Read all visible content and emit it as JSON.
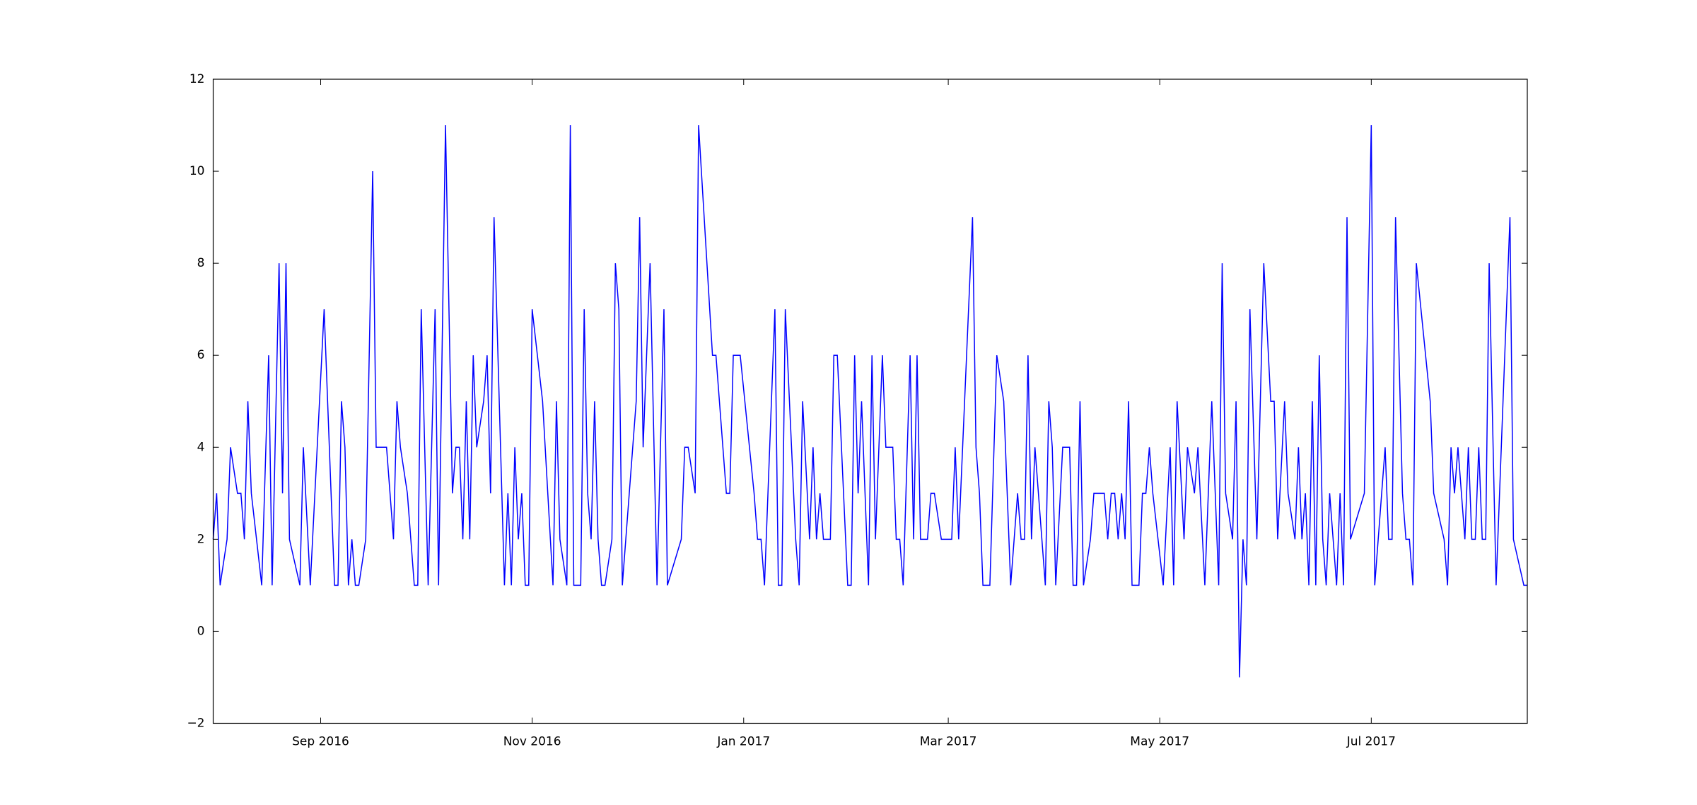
{
  "chart_data": {
    "type": "line",
    "color": "#0000ff",
    "xlim": [
      "2016-08-01",
      "2017-08-15"
    ],
    "xticks": [
      {
        "value": "2016-09-01",
        "label": "Sep 2016"
      },
      {
        "value": "2016-11-01",
        "label": "Nov 2016"
      },
      {
        "value": "2017-01-01",
        "label": "Jan 2017"
      },
      {
        "value": "2017-03-01",
        "label": "Mar 2017"
      },
      {
        "value": "2017-05-01",
        "label": "May 2017"
      },
      {
        "value": "2017-07-01",
        "label": "Jul 2017"
      }
    ],
    "ylim": [
      -2,
      12
    ],
    "yticks": [
      {
        "value": -2,
        "label": "−2"
      },
      0,
      2,
      4,
      6,
      8,
      10,
      12
    ],
    "grid": false,
    "x": [
      "2016-08-01",
      "2016-08-02",
      "2016-08-03",
      "2016-08-05",
      "2016-08-06",
      "2016-08-08",
      "2016-08-09",
      "2016-08-10",
      "2016-08-11",
      "2016-08-12",
      "2016-08-15",
      "2016-08-17",
      "2016-08-18",
      "2016-08-20",
      "2016-08-21",
      "2016-08-22",
      "2016-08-23",
      "2016-08-26",
      "2016-08-27",
      "2016-08-29",
      "2016-09-02",
      "2016-09-05",
      "2016-09-06",
      "2016-09-07",
      "2016-09-08",
      "2016-09-09",
      "2016-09-10",
      "2016-09-11",
      "2016-09-12",
      "2016-09-14",
      "2016-09-16",
      "2016-09-17",
      "2016-09-20",
      "2016-09-22",
      "2016-09-23",
      "2016-09-24",
      "2016-09-26",
      "2016-09-28",
      "2016-09-29",
      "2016-09-30",
      "2016-10-02",
      "2016-10-04",
      "2016-10-05",
      "2016-10-07",
      "2016-10-09",
      "2016-10-10",
      "2016-10-11",
      "2016-10-12",
      "2016-10-13",
      "2016-10-14",
      "2016-10-15",
      "2016-10-16",
      "2016-10-18",
      "2016-10-19",
      "2016-10-20",
      "2016-10-21",
      "2016-10-24",
      "2016-10-25",
      "2016-10-26",
      "2016-10-27",
      "2016-10-28",
      "2016-10-29",
      "2016-10-30",
      "2016-10-31",
      "2016-11-01",
      "2016-11-04",
      "2016-11-07",
      "2016-11-08",
      "2016-11-09",
      "2016-11-11",
      "2016-11-12",
      "2016-11-13",
      "2016-11-15",
      "2016-11-16",
      "2016-11-17",
      "2016-11-18",
      "2016-11-19",
      "2016-11-20",
      "2016-11-21",
      "2016-11-22",
      "2016-11-24",
      "2016-11-25",
      "2016-11-26",
      "2016-11-27",
      "2016-12-01",
      "2016-12-02",
      "2016-12-03",
      "2016-12-05",
      "2016-12-07",
      "2016-12-09",
      "2016-12-10",
      "2016-12-14",
      "2016-12-15",
      "2016-12-16",
      "2016-12-18",
      "2016-12-19",
      "2016-12-23",
      "2016-12-24",
      "2016-12-27",
      "2016-12-28",
      "2016-12-29",
      "2016-12-31",
      "2017-01-04",
      "2017-01-05",
      "2017-01-06",
      "2017-01-07",
      "2017-01-10",
      "2017-01-11",
      "2017-01-12",
      "2017-01-13",
      "2017-01-16",
      "2017-01-17",
      "2017-01-18",
      "2017-01-20",
      "2017-01-21",
      "2017-01-22",
      "2017-01-23",
      "2017-01-24",
      "2017-01-26",
      "2017-01-27",
      "2017-01-28",
      "2017-01-31",
      "2017-02-01",
      "2017-02-02",
      "2017-02-03",
      "2017-02-04",
      "2017-02-06",
      "2017-02-07",
      "2017-02-08",
      "2017-02-10",
      "2017-02-11",
      "2017-02-13",
      "2017-02-14",
      "2017-02-15",
      "2017-02-16",
      "2017-02-18",
      "2017-02-19",
      "2017-02-20",
      "2017-02-21",
      "2017-02-23",
      "2017-02-24",
      "2017-02-25",
      "2017-02-27",
      "2017-03-02",
      "2017-03-03",
      "2017-03-04",
      "2017-03-08",
      "2017-03-09",
      "2017-03-10",
      "2017-03-11",
      "2017-03-13",
      "2017-03-15",
      "2017-03-17",
      "2017-03-19",
      "2017-03-21",
      "2017-03-22",
      "2017-03-23",
      "2017-03-24",
      "2017-03-25",
      "2017-03-26",
      "2017-03-29",
      "2017-03-30",
      "2017-03-31",
      "2017-04-01",
      "2017-04-03",
      "2017-04-05",
      "2017-04-06",
      "2017-04-07",
      "2017-04-08",
      "2017-04-09",
      "2017-04-11",
      "2017-04-12",
      "2017-04-15",
      "2017-04-16",
      "2017-04-17",
      "2017-04-18",
      "2017-04-19",
      "2017-04-20",
      "2017-04-21",
      "2017-04-22",
      "2017-04-23",
      "2017-04-25",
      "2017-04-26",
      "2017-04-27",
      "2017-04-28",
      "2017-04-29",
      "2017-05-02",
      "2017-05-04",
      "2017-05-05",
      "2017-05-06",
      "2017-05-08",
      "2017-05-09",
      "2017-05-11",
      "2017-05-12",
      "2017-05-14",
      "2017-05-16",
      "2017-05-18",
      "2017-05-19",
      "2017-05-20",
      "2017-05-22",
      "2017-05-23",
      "2017-05-24",
      "2017-05-25",
      "2017-05-26",
      "2017-05-27",
      "2017-05-29",
      "2017-05-31",
      "2017-06-02",
      "2017-06-03",
      "2017-06-04",
      "2017-06-06",
      "2017-06-07",
      "2017-06-09",
      "2017-06-10",
      "2017-06-11",
      "2017-06-12",
      "2017-06-13",
      "2017-06-14",
      "2017-06-15",
      "2017-06-16",
      "2017-06-17",
      "2017-06-18",
      "2017-06-19",
      "2017-06-21",
      "2017-06-22",
      "2017-06-23",
      "2017-06-24",
      "2017-06-25",
      "2017-06-29",
      "2017-07-01",
      "2017-07-02",
      "2017-07-05",
      "2017-07-06",
      "2017-07-07",
      "2017-07-08",
      "2017-07-10",
      "2017-07-11",
      "2017-07-12",
      "2017-07-13",
      "2017-07-14",
      "2017-07-18",
      "2017-07-19",
      "2017-07-22",
      "2017-07-23",
      "2017-07-24",
      "2017-07-25",
      "2017-07-26",
      "2017-07-28",
      "2017-07-29",
      "2017-07-30",
      "2017-07-31",
      "2017-08-01",
      "2017-08-02",
      "2017-08-03",
      "2017-08-04",
      "2017-08-06",
      "2017-08-10",
      "2017-08-11",
      "2017-08-14",
      "2017-08-15"
    ],
    "values": [
      2,
      3,
      1,
      2,
      4,
      3,
      3,
      2,
      5,
      3,
      1,
      6,
      1,
      8,
      3,
      8,
      2,
      1,
      4,
      1,
      7,
      1,
      1,
      5,
      4,
      1,
      2,
      1,
      1,
      2,
      10,
      4,
      4,
      2,
      5,
      4,
      3,
      1,
      1,
      7,
      1,
      7,
      1,
      11,
      3,
      4,
      4,
      2,
      5,
      2,
      6,
      4,
      5,
      6,
      3,
      9,
      1,
      3,
      1,
      4,
      2,
      3,
      1,
      1,
      7,
      5,
      1,
      5,
      2,
      1,
      11,
      1,
      1,
      7,
      3,
      2,
      5,
      2,
      1,
      1,
      2,
      8,
      7,
      1,
      5,
      9,
      4,
      8,
      1,
      7,
      1,
      2,
      4,
      4,
      3,
      11,
      6,
      6,
      3,
      3,
      6,
      6,
      3,
      2,
      2,
      1,
      7,
      1,
      1,
      7,
      2,
      1,
      5,
      2,
      4,
      2,
      3,
      2,
      2,
      6,
      6,
      1,
      1,
      6,
      3,
      5,
      1,
      6,
      2,
      6,
      4,
      4,
      2,
      2,
      1,
      6,
      2,
      6,
      2,
      2,
      3,
      3,
      2,
      2,
      4,
      2,
      9,
      4,
      3,
      1,
      1,
      6,
      5,
      1,
      3,
      2,
      2,
      6,
      2,
      4,
      1,
      5,
      4,
      1,
      4,
      4,
      1,
      1,
      5,
      1,
      2,
      3,
      3,
      2,
      3,
      3,
      2,
      3,
      2,
      5,
      1,
      1,
      3,
      3,
      4,
      3,
      1,
      4,
      1,
      5,
      2,
      4,
      3,
      4,
      1,
      5,
      1,
      8,
      3,
      2,
      5,
      -1,
      2,
      1,
      7,
      2,
      8,
      5,
      5,
      2,
      5,
      3,
      2,
      4,
      2,
      3,
      1,
      5,
      1,
      6,
      2,
      1,
      3,
      1,
      3,
      1,
      9,
      2,
      3,
      11,
      1,
      4,
      2,
      2,
      9,
      3,
      2,
      2,
      1,
      8,
      5,
      3,
      2,
      1,
      4,
      3,
      4,
      2,
      4,
      2,
      2,
      4,
      2,
      2,
      8,
      1,
      9,
      2,
      1,
      1
    ]
  }
}
